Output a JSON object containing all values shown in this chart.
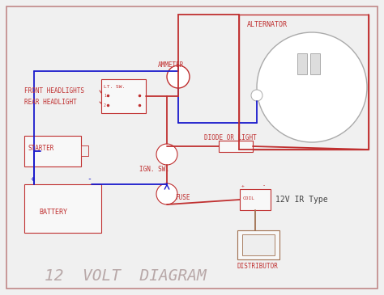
{
  "title": "12  VOLT  DIAGRAM",
  "title_color": "#b8a8a8",
  "title_fontsize": 14,
  "bg_color": "#f0f0f0",
  "border_color": "#c08888",
  "red": "#c03030",
  "blue": "#1a1acc",
  "gray": "#aaaaaa",
  "brown": "#a07050",
  "label_color": "#c03030",
  "dark_label": "#606060",
  "alternator_label": "ALTERNATOR",
  "battery_label": "BATTERY",
  "starter_label": "STARTER",
  "front_headlights_label": "FRONT HEADLIGHTS",
  "rear_headlight_label": "REAR HEADLIGHT",
  "lt_sw_label": "LT. SW.",
  "ammeter_label": "AMMETER",
  "ign_sw_label": "IGN. SW.",
  "fuse_label": "FUSE",
  "diode_label": "DIODE OR LIGHT",
  "coil_label": "COIL",
  "distributor_label": "DISTRIBUTOR",
  "ir_type_label": "12V IR Type"
}
